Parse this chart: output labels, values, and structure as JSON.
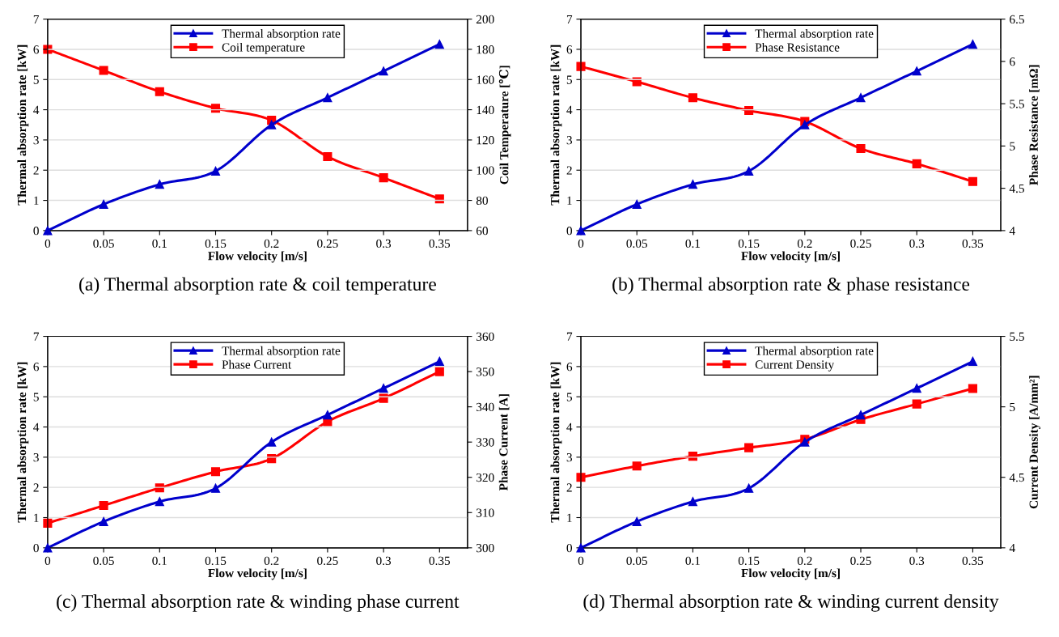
{
  "chart_data": [
    {
      "type": "line",
      "title": "(a) Thermal absorption rate & coil temperature",
      "xlabel": "Flow velocity [m/s]",
      "ylabel": "Thermal absorption rate [kW]",
      "y2label": "Coil Temperature [℃]",
      "x": [
        0,
        0.05,
        0.1,
        0.15,
        0.2,
        0.25,
        0.3,
        0.35
      ],
      "series": [
        {
          "name": "Thermal absorption rate",
          "color": "#0000cc",
          "marker": "triangle",
          "values": [
            0,
            0.87,
            1.53,
            1.97,
            3.5,
            4.4,
            5.28,
            6.17
          ]
        },
        {
          "name": "Coil temperature",
          "color": "#ff0000",
          "marker": "square",
          "axis": "y2",
          "values": [
            180,
            166,
            152,
            141,
            133,
            109,
            95,
            81
          ]
        }
      ],
      "xlim": [
        0,
        0.375
      ],
      "xticks": [
        0,
        0.05,
        0.1,
        0.15,
        0.2,
        0.25,
        0.3,
        0.35
      ],
      "ylim": [
        0,
        7
      ],
      "yticks": [
        0,
        1,
        2,
        3,
        4,
        5,
        6,
        7
      ],
      "y2lim": [
        60,
        200
      ],
      "y2ticks": [
        60,
        80,
        100,
        120,
        140,
        160,
        180,
        200
      ],
      "grid": "y",
      "legend": "top",
      "line_style": "solid"
    },
    {
      "type": "line",
      "title": "(b) Thermal absorption rate & phase resistance",
      "xlabel": "Flow velocity [m/s]",
      "ylabel": "Thermal absorption rate [kW]",
      "y2label": "Phase Resistance [mΩ]",
      "x": [
        0,
        0.05,
        0.1,
        0.15,
        0.2,
        0.25,
        0.3,
        0.35
      ],
      "series": [
        {
          "name": "Thermal absorption rate",
          "color": "#0000cc",
          "marker": "triangle",
          "values": [
            0,
            0.87,
            1.53,
            1.97,
            3.5,
            4.4,
            5.28,
            6.17
          ]
        },
        {
          "name": "Phase Resistance",
          "color": "#ff0000",
          "marker": "square",
          "axis": "y2",
          "values": [
            5.94,
            5.76,
            5.57,
            5.42,
            5.29,
            4.97,
            4.79,
            4.58
          ]
        }
      ],
      "xlim": [
        0,
        0.375
      ],
      "xticks": [
        0,
        0.05,
        0.1,
        0.15,
        0.2,
        0.25,
        0.3,
        0.35
      ],
      "ylim": [
        0,
        7
      ],
      "yticks": [
        0,
        1,
        2,
        3,
        4,
        5,
        6,
        7
      ],
      "y2lim": [
        4,
        6.5
      ],
      "y2ticks": [
        4,
        4.5,
        5,
        5.5,
        6,
        6.5
      ],
      "grid": "y",
      "legend": "top",
      "line_style": "solid"
    },
    {
      "type": "line",
      "title": "(c) Thermal absorption rate & winding phase current",
      "xlabel": "Flow velocity [m/s]",
      "ylabel": "Thermal absorption rate [kW]",
      "y2label": "Phase Current [A]",
      "x": [
        0,
        0.05,
        0.1,
        0.15,
        0.2,
        0.25,
        0.3,
        0.35
      ],
      "series": [
        {
          "name": "Thermal absorption rate",
          "color": "#0000cc",
          "marker": "triangle",
          "values": [
            0,
            0.87,
            1.53,
            1.97,
            3.5,
            4.4,
            5.28,
            6.17
          ]
        },
        {
          "name": "Phase Current",
          "color": "#ff0000",
          "marker": "square",
          "axis": "y2",
          "values": [
            307,
            312,
            317,
            321.6,
            325.3,
            335.8,
            342.4,
            350
          ]
        }
      ],
      "xlim": [
        0,
        0.375
      ],
      "xticks": [
        0,
        0.05,
        0.1,
        0.15,
        0.2,
        0.25,
        0.3,
        0.35
      ],
      "ylim": [
        0,
        7
      ],
      "yticks": [
        0,
        1,
        2,
        3,
        4,
        5,
        6,
        7
      ],
      "y2lim": [
        300,
        360
      ],
      "y2ticks": [
        300,
        310,
        320,
        330,
        340,
        350,
        360
      ],
      "grid": "y",
      "legend": "top",
      "line_style": "solid"
    },
    {
      "type": "line",
      "title": "(d) Thermal absorption rate & winding current density",
      "xlabel": "Flow velocity [m/s]",
      "ylabel": "Thermal absorption rate [kW]",
      "y2label": "Current Density [A/mm²]",
      "x": [
        0,
        0.05,
        0.1,
        0.15,
        0.2,
        0.25,
        0.3,
        0.35
      ],
      "series": [
        {
          "name": "Thermal absorption rate",
          "color": "#0000cc",
          "marker": "triangle",
          "values": [
            0,
            0.87,
            1.53,
            1.97,
            3.5,
            4.4,
            5.28,
            6.17
          ]
        },
        {
          "name": "Current Density",
          "color": "#ff0000",
          "marker": "square",
          "axis": "y2",
          "values": [
            4.5,
            4.58,
            4.65,
            4.71,
            4.77,
            4.91,
            5.02,
            5.13
          ]
        }
      ],
      "xlim": [
        0,
        0.375
      ],
      "xticks": [
        0,
        0.05,
        0.1,
        0.15,
        0.2,
        0.25,
        0.3,
        0.35
      ],
      "ylim": [
        0,
        7
      ],
      "yticks": [
        0,
        1,
        2,
        3,
        4,
        5,
        6,
        7
      ],
      "y2lim": [
        4,
        5.5
      ],
      "y2ticks": [
        4,
        4.5,
        5,
        5.5
      ],
      "grid": "y",
      "legend": "top",
      "line_style": "solid"
    }
  ]
}
